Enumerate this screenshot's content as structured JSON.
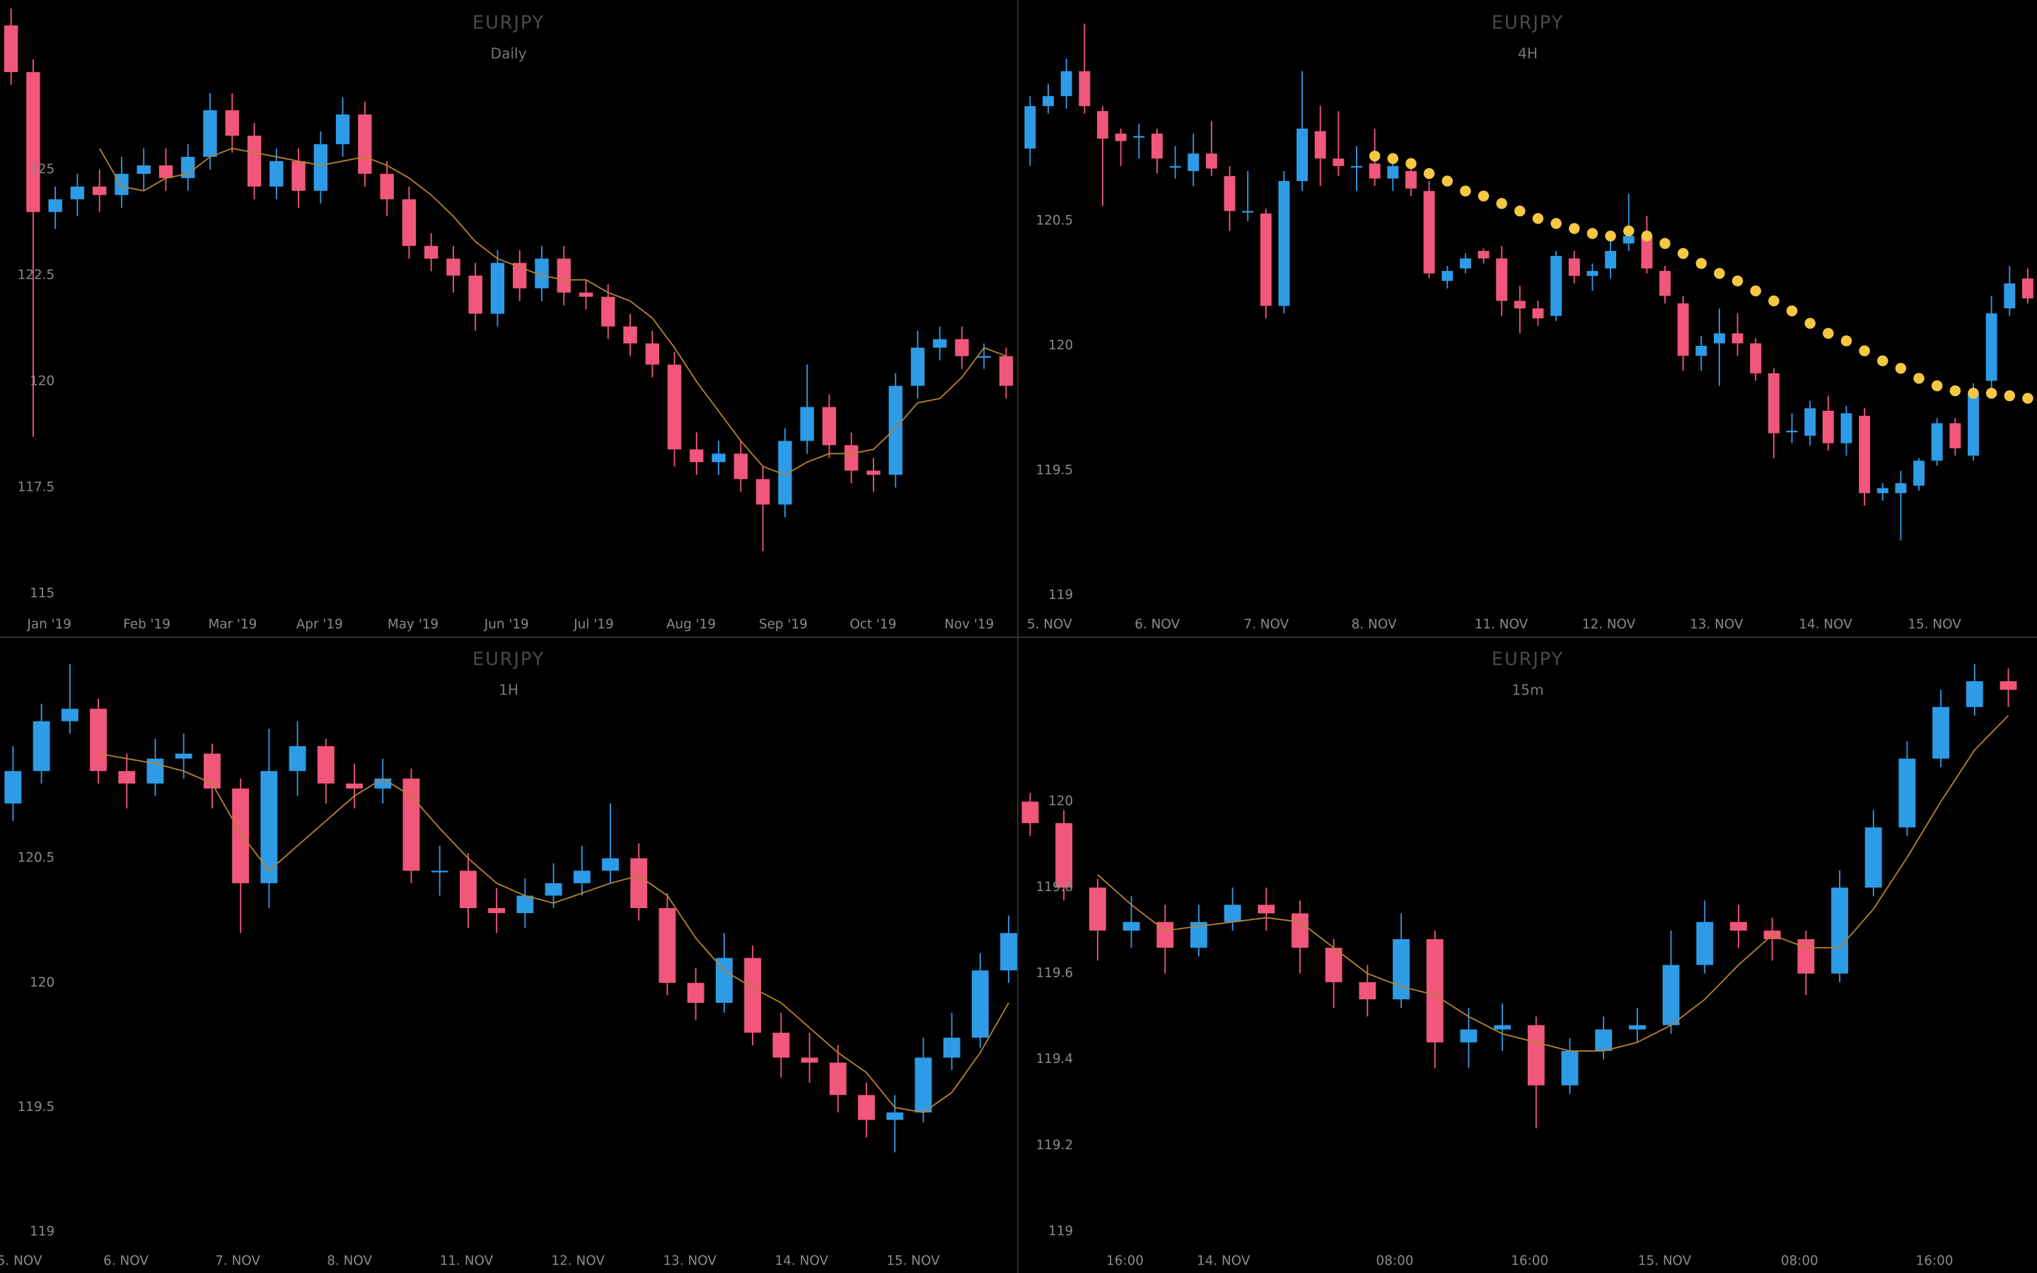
{
  "chart_data": [
    {
      "type": "candlestick",
      "title": "EURJPY",
      "subtitle": "Daily",
      "up_color": "#2e9be6",
      "down_color": "#f0577b",
      "ylim": [
        114.6,
        129.0
      ],
      "yticks": [
        115,
        117.5,
        120,
        122.5,
        125
      ],
      "xlim": [
        -0.5,
        45.5
      ],
      "xticks": [
        {
          "value": 1.73,
          "label": "Jan '19"
        },
        {
          "value": 6.14,
          "label": "Feb '19"
        },
        {
          "value": 10.02,
          "label": "Mar '19"
        },
        {
          "value": 13.95,
          "label": "Apr '19"
        },
        {
          "value": 18.18,
          "label": "May '19"
        },
        {
          "value": 22.41,
          "label": "Jun '19"
        },
        {
          "value": 26.35,
          "label": "Jul '19"
        },
        {
          "value": 30.75,
          "label": "Aug '19"
        },
        {
          "value": 34.92,
          "label": "Sep '19"
        },
        {
          "value": 38.98,
          "label": "Oct '19"
        },
        {
          "value": 43.33,
          "label": "Nov '19"
        }
      ],
      "open": [
        128.4,
        127.3,
        124.0,
        124.3,
        124.6,
        124.4,
        124.9,
        125.1,
        124.8,
        125.3,
        126.4,
        125.8,
        124.6,
        125.2,
        124.5,
        125.6,
        126.3,
        124.9,
        124.3,
        123.2,
        122.9,
        122.5,
        121.6,
        122.8,
        122.2,
        122.9,
        122.1,
        122.0,
        121.3,
        120.9,
        120.4,
        118.4,
        118.1,
        118.3,
        117.7,
        117.1,
        118.6,
        119.4,
        118.5,
        117.9,
        117.8,
        119.9,
        120.8,
        121.0,
        120.6,
        120.6
      ],
      "high": [
        128.8,
        127.6,
        124.6,
        124.9,
        125.0,
        125.3,
        125.5,
        125.5,
        125.6,
        126.8,
        126.8,
        126.1,
        125.5,
        125.5,
        125.9,
        126.7,
        126.6,
        125.2,
        124.6,
        123.5,
        123.2,
        122.8,
        123.1,
        123.1,
        123.2,
        123.2,
        122.4,
        122.3,
        121.6,
        121.2,
        120.7,
        118.8,
        118.6,
        118.6,
        118.0,
        118.9,
        120.4,
        119.7,
        118.8,
        118.2,
        120.2,
        121.2,
        121.3,
        121.3,
        120.9,
        120.8
      ],
      "low": [
        127.0,
        118.7,
        123.6,
        123.9,
        124.0,
        124.1,
        124.5,
        124.5,
        124.5,
        125.0,
        125.4,
        124.3,
        124.3,
        124.1,
        124.2,
        125.3,
        124.6,
        123.9,
        122.9,
        122.6,
        122.1,
        121.2,
        121.3,
        121.9,
        121.9,
        121.8,
        121.7,
        121.0,
        120.6,
        120.1,
        118.0,
        117.8,
        117.8,
        117.4,
        116.0,
        116.8,
        118.3,
        118.2,
        117.6,
        117.4,
        117.5,
        119.6,
        120.5,
        120.3,
        120.3,
        119.6
      ],
      "close": [
        127.3,
        124.0,
        124.3,
        124.6,
        124.4,
        124.9,
        125.1,
        124.8,
        125.3,
        126.4,
        125.8,
        124.6,
        125.2,
        124.5,
        125.6,
        126.3,
        124.9,
        124.3,
        123.2,
        122.9,
        122.5,
        121.6,
        122.8,
        122.2,
        122.9,
        122.1,
        122.0,
        121.3,
        120.9,
        120.4,
        118.4,
        118.1,
        118.3,
        117.7,
        117.1,
        118.6,
        119.4,
        118.5,
        117.9,
        117.8,
        119.9,
        120.8,
        121.0,
        120.6,
        120.6,
        119.9
      ],
      "ma": {
        "color": "#b5822e",
        "values": [
          null,
          null,
          null,
          null,
          125.5,
          124.6,
          124.5,
          124.8,
          124.9,
          125.3,
          125.5,
          125.4,
          125.3,
          125.2,
          125.1,
          125.2,
          125.3,
          125.1,
          124.8,
          124.4,
          123.9,
          123.3,
          122.9,
          122.7,
          122.5,
          122.4,
          122.4,
          122.1,
          121.9,
          121.5,
          120.8,
          120.0,
          119.3,
          118.6,
          118.0,
          117.8,
          118.1,
          118.3,
          118.3,
          118.4,
          118.9,
          119.5,
          119.6,
          120.1,
          120.8,
          120.6
        ]
      }
    },
    {
      "type": "candlestick",
      "title": "EURJPY",
      "subtitle": "4H",
      "up_color": "#2e9be6",
      "down_color": "#f0577b",
      "ylim": [
        118.94,
        121.385
      ],
      "yticks": [
        119,
        119.5,
        120,
        120.5
      ],
      "xlim": [
        -0.64,
        55.51
      ],
      "xticks": [
        {
          "value": 1.07,
          "label": "5. NOV"
        },
        {
          "value": 7.01,
          "label": "6. NOV"
        },
        {
          "value": 13.02,
          "label": "7. NOV"
        },
        {
          "value": 18.96,
          "label": "8. NOV"
        },
        {
          "value": 25.97,
          "label": "11. NOV"
        },
        {
          "value": 31.9,
          "label": "12. NOV"
        },
        {
          "value": 37.84,
          "label": "13. NOV"
        },
        {
          "value": 43.85,
          "label": "14. NOV"
        },
        {
          "value": 49.86,
          "label": "15. NOV"
        }
      ],
      "open": [
        120.79,
        120.96,
        121.0,
        121.1,
        120.94,
        120.85,
        120.84,
        120.85,
        120.72,
        120.7,
        120.77,
        120.68,
        120.54,
        120.53,
        120.16,
        120.66,
        120.86,
        120.75,
        120.72,
        120.73,
        120.67,
        120.7,
        120.62,
        120.26,
        120.31,
        120.38,
        120.35,
        120.18,
        120.15,
        120.12,
        120.35,
        120.28,
        120.31,
        120.41,
        120.44,
        120.3,
        120.17,
        119.96,
        120.01,
        120.05,
        120.01,
        119.89,
        119.66,
        119.64,
        119.74,
        119.61,
        119.72,
        119.41,
        119.41,
        119.44,
        119.54,
        119.69,
        119.56,
        119.86,
        120.15,
        120.27
      ],
      "high": [
        121.0,
        121.05,
        121.15,
        121.29,
        120.96,
        120.87,
        120.89,
        120.87,
        120.8,
        120.85,
        120.9,
        120.72,
        120.7,
        120.55,
        120.7,
        121.1,
        120.96,
        120.94,
        120.8,
        120.87,
        120.75,
        120.73,
        120.66,
        120.32,
        120.37,
        120.39,
        120.4,
        120.24,
        120.18,
        120.38,
        120.38,
        120.33,
        120.42,
        120.61,
        120.52,
        120.32,
        120.2,
        120.04,
        120.15,
        120.13,
        120.03,
        119.91,
        119.73,
        119.78,
        119.8,
        119.76,
        119.75,
        119.45,
        119.5,
        119.55,
        119.71,
        119.71,
        119.85,
        120.2,
        120.32,
        120.31
      ],
      "low": [
        120.72,
        120.93,
        120.95,
        120.93,
        120.56,
        120.72,
        120.75,
        120.69,
        120.67,
        120.64,
        120.68,
        120.46,
        120.5,
        120.11,
        120.13,
        120.62,
        120.64,
        120.68,
        120.62,
        120.64,
        120.62,
        120.6,
        120.27,
        120.23,
        120.29,
        120.33,
        120.12,
        120.05,
        120.08,
        120.1,
        120.25,
        120.22,
        120.27,
        120.38,
        120.29,
        120.17,
        119.9,
        119.9,
        119.84,
        119.96,
        119.86,
        119.55,
        119.61,
        119.6,
        119.58,
        119.56,
        119.36,
        119.38,
        119.22,
        119.42,
        119.52,
        119.56,
        119.54,
        119.82,
        120.12,
        120.17
      ],
      "close": [
        120.96,
        121.0,
        121.1,
        120.96,
        120.83,
        120.82,
        120.84,
        120.75,
        120.72,
        120.77,
        120.71,
        120.54,
        120.54,
        120.16,
        120.66,
        120.87,
        120.75,
        120.72,
        120.72,
        120.67,
        120.72,
        120.63,
        120.29,
        120.3,
        120.35,
        120.35,
        120.18,
        120.15,
        120.11,
        120.36,
        120.28,
        120.3,
        120.38,
        120.44,
        120.31,
        120.2,
        119.96,
        120.0,
        120.05,
        120.01,
        119.89,
        119.65,
        119.66,
        119.75,
        119.61,
        119.73,
        119.41,
        119.43,
        119.45,
        119.54,
        119.69,
        119.59,
        119.81,
        120.13,
        120.25,
        120.19
      ],
      "sar": {
        "color": "#f5c842",
        "values": [
          null,
          null,
          null,
          null,
          null,
          null,
          null,
          null,
          null,
          null,
          null,
          null,
          null,
          null,
          null,
          null,
          null,
          null,
          null,
          120.76,
          120.75,
          120.73,
          120.69,
          120.66,
          120.62,
          120.6,
          120.57,
          120.54,
          120.51,
          120.49,
          120.47,
          120.45,
          120.44,
          120.46,
          120.44,
          120.41,
          120.37,
          120.33,
          120.29,
          120.26,
          120.22,
          120.18,
          120.14,
          120.09,
          120.05,
          120.02,
          119.98,
          119.94,
          119.91,
          119.87,
          119.84,
          119.82,
          119.81,
          119.81,
          119.8,
          119.79
        ]
      }
    },
    {
      "type": "candlestick",
      "title": "EURJPY",
      "subtitle": "1H",
      "up_color": "#2e9be6",
      "down_color": "#f0577b",
      "ylim": [
        118.94,
        121.39
      ],
      "yticks": [
        119,
        119.5,
        120,
        120.5
      ],
      "xlim": [
        -0.457,
        35.3
      ],
      "xticks": [
        {
          "value": 0.23,
          "label": "5. NOV"
        },
        {
          "value": 3.97,
          "label": "6. NOV"
        },
        {
          "value": 7.9,
          "label": "7. NOV"
        },
        {
          "value": 11.83,
          "label": "8. NOV"
        },
        {
          "value": 15.94,
          "label": "11. NOV"
        },
        {
          "value": 19.86,
          "label": "12. NOV"
        },
        {
          "value": 23.79,
          "label": "13. NOV"
        },
        {
          "value": 27.72,
          "label": "14. NOV"
        },
        {
          "value": 31.64,
          "label": "15. NOV"
        }
      ],
      "open": [
        120.72,
        120.85,
        121.05,
        121.1,
        120.85,
        120.8,
        120.9,
        120.92,
        120.78,
        120.4,
        120.85,
        120.95,
        120.8,
        120.78,
        120.82,
        120.45,
        120.45,
        120.3,
        120.28,
        120.35,
        120.4,
        120.45,
        120.5,
        120.3,
        120.0,
        119.92,
        120.1,
        119.8,
        119.7,
        119.68,
        119.55,
        119.45,
        119.48,
        119.7,
        119.78,
        120.05
      ],
      "high": [
        120.95,
        121.12,
        121.28,
        121.14,
        120.92,
        120.98,
        121.0,
        120.96,
        120.82,
        121.02,
        121.05,
        120.98,
        120.88,
        120.9,
        120.86,
        120.55,
        120.52,
        120.38,
        120.42,
        120.48,
        120.55,
        120.72,
        120.56,
        120.36,
        120.06,
        120.2,
        120.15,
        119.88,
        119.8,
        119.75,
        119.6,
        119.55,
        119.78,
        119.88,
        120.12,
        120.27
      ],
      "low": [
        120.65,
        120.8,
        121.0,
        120.8,
        120.7,
        120.75,
        120.82,
        120.7,
        120.2,
        120.3,
        120.75,
        120.72,
        120.7,
        120.72,
        120.4,
        120.35,
        120.22,
        120.2,
        120.22,
        120.3,
        120.35,
        120.4,
        120.25,
        119.95,
        119.85,
        119.88,
        119.75,
        119.62,
        119.6,
        119.48,
        119.38,
        119.32,
        119.44,
        119.65,
        119.74,
        120.0
      ],
      "close": [
        120.85,
        121.05,
        121.1,
        120.85,
        120.8,
        120.9,
        120.92,
        120.78,
        120.4,
        120.85,
        120.95,
        120.8,
        120.78,
        120.82,
        120.45,
        120.45,
        120.3,
        120.28,
        120.35,
        120.4,
        120.45,
        120.5,
        120.3,
        120.0,
        119.92,
        120.1,
        119.8,
        119.7,
        119.68,
        119.55,
        119.45,
        119.48,
        119.7,
        119.78,
        120.05,
        120.2
      ],
      "ma": {
        "color": "#b5822e",
        "values": [
          null,
          null,
          null,
          120.92,
          120.9,
          120.88,
          120.85,
          120.8,
          120.6,
          120.45,
          120.55,
          120.65,
          120.75,
          120.82,
          120.75,
          120.62,
          120.5,
          120.4,
          120.35,
          120.32,
          120.36,
          120.4,
          120.43,
          120.35,
          120.18,
          120.05,
          119.98,
          119.92,
          119.82,
          119.72,
          119.64,
          119.5,
          119.48,
          119.56,
          119.72,
          119.92
        ]
      }
    },
    {
      "type": "candlestick",
      "title": "EURJPY",
      "subtitle": "15m",
      "up_color": "#2e9be6",
      "down_color": "#f0577b",
      "ylim": [
        118.964,
        120.384
      ],
      "yticks": [
        119,
        119.2,
        119.4,
        119.6,
        119.8,
        120
      ],
      "xlim": [
        -0.346,
        29.85
      ],
      "xticks": [
        {
          "value": 2.81,
          "label": "16:00"
        },
        {
          "value": 5.73,
          "label": "14. NOV"
        },
        {
          "value": 10.81,
          "label": "08:00"
        },
        {
          "value": 14.81,
          "label": "16:00"
        },
        {
          "value": 18.81,
          "label": "15. NOV"
        },
        {
          "value": 22.81,
          "label": "08:00"
        },
        {
          "value": 26.81,
          "label": "16:00"
        }
      ],
      "open": [
        120.0,
        119.95,
        119.8,
        119.7,
        119.72,
        119.66,
        119.72,
        119.76,
        119.74,
        119.66,
        119.58,
        119.54,
        119.68,
        119.44,
        119.47,
        119.48,
        119.34,
        119.42,
        119.47,
        119.48,
        119.62,
        119.72,
        119.7,
        119.68,
        119.6,
        119.8,
        119.94,
        120.1,
        120.22,
        120.28
      ],
      "high": [
        120.02,
        119.98,
        119.82,
        119.78,
        119.76,
        119.76,
        119.8,
        119.8,
        119.77,
        119.68,
        119.62,
        119.74,
        119.7,
        119.52,
        119.53,
        119.5,
        119.45,
        119.5,
        119.52,
        119.7,
        119.77,
        119.76,
        119.73,
        119.7,
        119.84,
        119.98,
        120.14,
        120.26,
        120.32,
        120.31
      ],
      "low": [
        119.92,
        119.77,
        119.63,
        119.66,
        119.6,
        119.64,
        119.7,
        119.7,
        119.6,
        119.52,
        119.5,
        119.52,
        119.38,
        119.38,
        119.42,
        119.24,
        119.32,
        119.4,
        119.44,
        119.46,
        119.6,
        119.66,
        119.63,
        119.55,
        119.58,
        119.78,
        119.92,
        120.08,
        120.2,
        120.22
      ],
      "close": [
        119.95,
        119.8,
        119.7,
        119.72,
        119.66,
        119.72,
        119.76,
        119.74,
        119.66,
        119.58,
        119.54,
        119.68,
        119.44,
        119.47,
        119.48,
        119.34,
        119.42,
        119.47,
        119.48,
        119.62,
        119.72,
        119.7,
        119.68,
        119.6,
        119.8,
        119.94,
        120.1,
        120.22,
        120.28,
        120.26
      ],
      "ma": {
        "color": "#b5822e",
        "values": [
          null,
          null,
          119.83,
          119.76,
          119.7,
          119.71,
          119.72,
          119.73,
          119.72,
          119.66,
          119.6,
          119.57,
          119.55,
          119.5,
          119.46,
          119.44,
          119.42,
          119.42,
          119.44,
          119.48,
          119.54,
          119.62,
          119.69,
          119.66,
          119.66,
          119.75,
          119.87,
          120.0,
          120.12,
          120.2
        ]
      }
    }
  ]
}
